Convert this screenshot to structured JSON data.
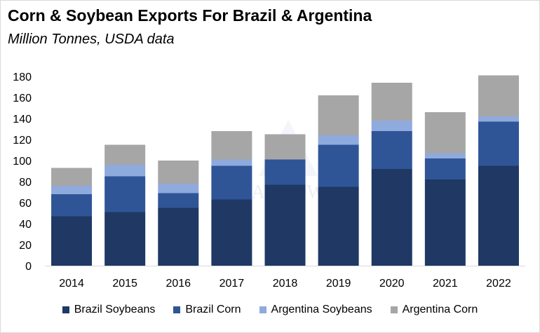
{
  "chart_data": {
    "type": "bar",
    "stacked": true,
    "title": "Corn & Soybean Exports For Brazil & Argentina",
    "subtitle": "Million Tonnes, USDA data",
    "categories": [
      "2014",
      "2015",
      "2016",
      "2017",
      "2018",
      "2019",
      "2020",
      "2021",
      "2022"
    ],
    "series": [
      {
        "name": "Brazil Soybeans",
        "color": "#1f3864",
        "values": [
          47,
          51,
          55,
          63,
          77,
          75,
          92,
          82,
          95
        ]
      },
      {
        "name": "Brazil Corn",
        "color": "#2f5597",
        "values": [
          21,
          34,
          14,
          32,
          24,
          40,
          36,
          20,
          42
        ]
      },
      {
        "name": "Argentina Soybeans",
        "color": "#8faadc",
        "values": [
          8,
          11,
          9,
          6,
          0,
          9,
          10,
          5,
          5
        ]
      },
      {
        "name": "Argentina Corn",
        "color": "#a6a6a6",
        "values": [
          17,
          19,
          22,
          27,
          24,
          38,
          36,
          39,
          39
        ]
      }
    ],
    "ylim": [
      0,
      180
    ],
    "yticks": [
      0,
      20,
      40,
      60,
      80,
      100,
      120,
      140,
      160,
      180
    ],
    "grid": false,
    "legend": "bottom",
    "watermark": "ARDOW"
  }
}
